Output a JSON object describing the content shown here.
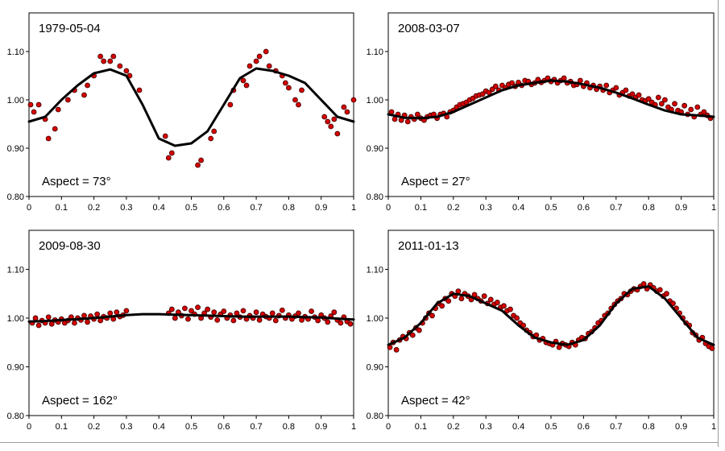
{
  "chart_data": [
    {
      "type": "scatter",
      "title": "1979-05-04",
      "annotation": "Aspect = 73°",
      "xlim": [
        0,
        1
      ],
      "ylim": [
        0.8,
        1.18
      ],
      "x_ticks": [
        "0",
        "0.1",
        "0.2",
        "0.3",
        "0.4",
        "0.5",
        "0.6",
        "0.7",
        "0.8",
        "0.9",
        "1"
      ],
      "y_ticks": [
        "0.80",
        "0.90",
        "1.00",
        "1.10"
      ],
      "fit_curve": {
        "x": [
          0,
          0.05,
          0.1,
          0.15,
          0.2,
          0.25,
          0.3,
          0.35,
          0.4,
          0.45,
          0.5,
          0.55,
          0.6,
          0.65,
          0.7,
          0.75,
          0.8,
          0.85,
          0.9,
          0.95,
          1.0
        ],
        "y": [
          0.955,
          0.965,
          1.0,
          1.03,
          1.055,
          1.063,
          1.05,
          0.99,
          0.92,
          0.905,
          0.91,
          0.935,
          0.99,
          1.045,
          1.065,
          1.06,
          1.05,
          1.035,
          1.0,
          0.965,
          0.955
        ]
      },
      "points": {
        "x": [
          0.005,
          0.015,
          0.03,
          0.05,
          0.06,
          0.08,
          0.09,
          0.12,
          0.14,
          0.17,
          0.18,
          0.2,
          0.22,
          0.23,
          0.25,
          0.26,
          0.28,
          0.3,
          0.31,
          0.34,
          0.42,
          0.43,
          0.44,
          0.52,
          0.53,
          0.56,
          0.57,
          0.62,
          0.63,
          0.66,
          0.67,
          0.68,
          0.7,
          0.71,
          0.73,
          0.74,
          0.76,
          0.78,
          0.79,
          0.8,
          0.82,
          0.83,
          0.84,
          0.91,
          0.92,
          0.93,
          0.94,
          0.95,
          0.97,
          0.98,
          1.0
        ],
        "y": [
          0.99,
          0.975,
          0.99,
          0.96,
          0.92,
          0.94,
          0.98,
          1.0,
          1.02,
          1.01,
          1.03,
          1.05,
          1.09,
          1.08,
          1.08,
          1.09,
          1.07,
          1.06,
          1.05,
          1.02,
          0.925,
          0.88,
          0.89,
          0.865,
          0.875,
          0.92,
          0.935,
          0.99,
          1.02,
          1.04,
          1.03,
          1.07,
          1.08,
          1.09,
          1.1,
          1.07,
          1.06,
          1.05,
          1.035,
          1.025,
          1.0,
          0.99,
          1.02,
          0.965,
          0.955,
          0.945,
          0.96,
          0.93,
          0.985,
          0.975,
          1.0
        ]
      }
    },
    {
      "type": "scatter",
      "title": "2008-03-07",
      "annotation": "Aspect = 27°",
      "xlim": [
        0,
        1
      ],
      "ylim": [
        0.8,
        1.18
      ],
      "x_ticks": [
        "0",
        "0.1",
        "0.2",
        "0.3",
        "0.4",
        "0.5",
        "0.6",
        "0.7",
        "0.8",
        "0.9",
        "1"
      ],
      "y_ticks": [
        "0.80",
        "0.90",
        "1.00",
        "1.10"
      ],
      "fit_curve": {
        "x": [
          0,
          0.05,
          0.1,
          0.15,
          0.2,
          0.25,
          0.3,
          0.35,
          0.4,
          0.45,
          0.5,
          0.55,
          0.6,
          0.65,
          0.7,
          0.75,
          0.8,
          0.85,
          0.9,
          0.95,
          1.0
        ],
        "y": [
          0.97,
          0.963,
          0.962,
          0.965,
          0.975,
          0.99,
          1.005,
          1.02,
          1.03,
          1.035,
          1.04,
          1.038,
          1.032,
          1.025,
          1.015,
          1.003,
          0.99,
          0.978,
          0.97,
          0.968,
          0.965
        ]
      },
      "points": {
        "x": [
          0.01,
          0.02,
          0.03,
          0.04,
          0.05,
          0.06,
          0.07,
          0.08,
          0.09,
          0.1,
          0.11,
          0.12,
          0.13,
          0.14,
          0.15,
          0.16,
          0.17,
          0.18,
          0.19,
          0.2,
          0.21,
          0.22,
          0.23,
          0.24,
          0.25,
          0.26,
          0.27,
          0.28,
          0.29,
          0.3,
          0.31,
          0.32,
          0.33,
          0.34,
          0.35,
          0.36,
          0.37,
          0.38,
          0.39,
          0.4,
          0.41,
          0.42,
          0.43,
          0.44,
          0.45,
          0.46,
          0.47,
          0.48,
          0.49,
          0.5,
          0.51,
          0.52,
          0.53,
          0.54,
          0.55,
          0.56,
          0.57,
          0.58,
          0.59,
          0.6,
          0.61,
          0.62,
          0.63,
          0.64,
          0.65,
          0.66,
          0.67,
          0.68,
          0.69,
          0.7,
          0.71,
          0.72,
          0.73,
          0.74,
          0.75,
          0.76,
          0.77,
          0.78,
          0.79,
          0.8,
          0.81,
          0.82,
          0.83,
          0.84,
          0.85,
          0.86,
          0.87,
          0.88,
          0.89,
          0.9,
          0.91,
          0.92,
          0.93,
          0.94,
          0.95,
          0.96,
          0.97,
          0.98,
          0.99
        ],
        "y": [
          0.975,
          0.96,
          0.97,
          0.958,
          0.968,
          0.955,
          0.965,
          0.96,
          0.97,
          0.962,
          0.958,
          0.965,
          0.968,
          0.97,
          0.962,
          0.97,
          0.972,
          0.965,
          0.975,
          0.978,
          0.985,
          0.99,
          0.992,
          0.995,
          1.0,
          1.003,
          1.008,
          1.01,
          1.012,
          1.018,
          1.015,
          1.022,
          1.028,
          1.02,
          1.03,
          1.025,
          1.032,
          1.035,
          1.028,
          1.036,
          1.03,
          1.04,
          1.038,
          1.032,
          1.035,
          1.042,
          1.036,
          1.04,
          1.045,
          1.038,
          1.042,
          1.035,
          1.04,
          1.045,
          1.035,
          1.038,
          1.03,
          1.032,
          1.04,
          1.028,
          1.035,
          1.025,
          1.03,
          1.022,
          1.028,
          1.02,
          1.03,
          1.015,
          1.02,
          1.025,
          1.01,
          1.015,
          1.02,
          1.008,
          1.012,
          1.005,
          1.01,
          1.0,
          0.998,
          1.002,
          0.995,
          0.99,
          1.005,
          0.992,
          1.0,
          0.985,
          0.98,
          0.992,
          0.978,
          0.975,
          0.988,
          0.97,
          0.98,
          0.965,
          0.985,
          0.97,
          0.975,
          0.968,
          0.962
        ]
      }
    },
    {
      "type": "scatter",
      "title": "2009-08-30",
      "annotation": "Aspect = 162°",
      "xlim": [
        0,
        1
      ],
      "ylim": [
        0.8,
        1.18
      ],
      "x_ticks": [
        "0",
        "0.1",
        "0.2",
        "0.3",
        "0.4",
        "0.5",
        "0.6",
        "0.7",
        "0.8",
        "0.9",
        "1"
      ],
      "y_ticks": [
        "0.80",
        "0.90",
        "1.00",
        "1.10"
      ],
      "fit_curve": {
        "x": [
          0,
          0.05,
          0.1,
          0.15,
          0.2,
          0.25,
          0.3,
          0.35,
          0.4,
          0.45,
          0.5,
          0.55,
          0.6,
          0.65,
          0.7,
          0.75,
          0.8,
          0.85,
          0.9,
          0.95,
          1.0
        ],
        "y": [
          0.993,
          0.994,
          0.996,
          0.998,
          1.0,
          1.003,
          1.006,
          1.008,
          1.008,
          1.007,
          1.006,
          1.005,
          1.004,
          1.003,
          1.003,
          1.003,
          1.003,
          1.002,
          1.001,
          0.999,
          0.997
        ]
      },
      "points": {
        "x": [
          0.01,
          0.02,
          0.03,
          0.04,
          0.05,
          0.06,
          0.07,
          0.08,
          0.09,
          0.1,
          0.11,
          0.12,
          0.13,
          0.14,
          0.15,
          0.16,
          0.17,
          0.18,
          0.19,
          0.2,
          0.21,
          0.22,
          0.23,
          0.24,
          0.25,
          0.26,
          0.27,
          0.28,
          0.29,
          0.3,
          0.43,
          0.44,
          0.45,
          0.46,
          0.47,
          0.48,
          0.49,
          0.5,
          0.51,
          0.52,
          0.53,
          0.54,
          0.55,
          0.56,
          0.57,
          0.58,
          0.59,
          0.6,
          0.61,
          0.62,
          0.63,
          0.64,
          0.65,
          0.66,
          0.67,
          0.68,
          0.69,
          0.7,
          0.71,
          0.72,
          0.73,
          0.74,
          0.75,
          0.76,
          0.77,
          0.78,
          0.79,
          0.8,
          0.81,
          0.82,
          0.83,
          0.84,
          0.85,
          0.86,
          0.87,
          0.88,
          0.89,
          0.9,
          0.91,
          0.92,
          0.93,
          0.94,
          0.95,
          0.96,
          0.97,
          0.98,
          0.99
        ],
        "y": [
          0.99,
          1.0,
          0.985,
          0.995,
          0.99,
          1.002,
          0.988,
          0.996,
          0.992,
          0.998,
          0.99,
          0.995,
          1.002,
          0.99,
          1.0,
          0.996,
          1.005,
          0.992,
          1.004,
          0.998,
          1.008,
          0.995,
          1.003,
          1.0,
          1.01,
          0.998,
          1.012,
          1.003,
          1.006,
          1.015,
          1.01,
          1.018,
          1.0,
          1.012,
          1.005,
          1.02,
          0.998,
          1.015,
          1.008,
          1.022,
          1.0,
          1.01,
          1.018,
          1.002,
          1.012,
          0.996,
          1.008,
          1.014,
          1.0,
          1.006,
          0.995,
          1.01,
          1.002,
          1.015,
          0.998,
          1.005,
          1.0,
          1.012,
          0.996,
          1.008,
          1.003,
          1.0,
          1.01,
          0.995,
          1.005,
          1.016,
          1.0,
          1.006,
          0.998,
          1.004,
          1.01,
          0.996,
          1.003,
          0.998,
          1.014,
          1.002,
          0.995,
          1.006,
          1.0,
          0.992,
          1.004,
          1.012,
          0.996,
          0.99,
          1.002,
          0.993,
          0.988
        ]
      }
    },
    {
      "type": "scatter",
      "title": "2011-01-13",
      "annotation": "Aspect = 42°",
      "xlim": [
        0,
        1
      ],
      "ylim": [
        0.8,
        1.18
      ],
      "x_ticks": [
        "0",
        "0.1",
        "0.2",
        "0.3",
        "0.4",
        "0.5",
        "0.6",
        "0.7",
        "0.8",
        "0.9",
        "1"
      ],
      "y_ticks": [
        "0.80",
        "0.90",
        "1.00",
        "1.10"
      ],
      "fit_curve": {
        "x": [
          0,
          0.05,
          0.1,
          0.15,
          0.2,
          0.25,
          0.3,
          0.35,
          0.4,
          0.45,
          0.5,
          0.55,
          0.6,
          0.65,
          0.7,
          0.75,
          0.8,
          0.85,
          0.9,
          0.95,
          1.0
        ],
        "y": [
          0.945,
          0.96,
          0.99,
          1.03,
          1.05,
          1.045,
          1.03,
          1.015,
          0.985,
          0.96,
          0.95,
          0.945,
          0.955,
          0.985,
          1.03,
          1.06,
          1.065,
          1.04,
          1.0,
          0.96,
          0.945
        ]
      },
      "points": {
        "x": [
          0.005,
          0.015,
          0.025,
          0.035,
          0.045,
          0.055,
          0.065,
          0.075,
          0.085,
          0.095,
          0.105,
          0.115,
          0.125,
          0.135,
          0.145,
          0.155,
          0.165,
          0.175,
          0.185,
          0.195,
          0.205,
          0.215,
          0.225,
          0.235,
          0.245,
          0.255,
          0.265,
          0.275,
          0.285,
          0.295,
          0.305,
          0.315,
          0.325,
          0.335,
          0.345,
          0.355,
          0.365,
          0.375,
          0.385,
          0.395,
          0.405,
          0.415,
          0.425,
          0.435,
          0.445,
          0.455,
          0.465,
          0.475,
          0.485,
          0.495,
          0.505,
          0.515,
          0.525,
          0.535,
          0.545,
          0.555,
          0.565,
          0.575,
          0.585,
          0.595,
          0.605,
          0.615,
          0.625,
          0.635,
          0.645,
          0.655,
          0.665,
          0.675,
          0.685,
          0.695,
          0.705,
          0.715,
          0.725,
          0.735,
          0.745,
          0.755,
          0.765,
          0.775,
          0.785,
          0.795,
          0.805,
          0.815,
          0.825,
          0.835,
          0.845,
          0.855,
          0.865,
          0.875,
          0.885,
          0.895,
          0.905,
          0.915,
          0.925,
          0.935,
          0.945,
          0.955,
          0.965,
          0.975,
          0.985,
          0.995
        ],
        "y": [
          0.94,
          0.95,
          0.935,
          0.955,
          0.962,
          0.958,
          0.97,
          0.965,
          0.98,
          0.975,
          0.99,
          1.0,
          1.01,
          1.005,
          1.02,
          1.03,
          1.025,
          1.04,
          1.035,
          1.05,
          1.045,
          1.055,
          1.04,
          1.05,
          1.045,
          1.038,
          1.048,
          1.04,
          1.035,
          1.045,
          1.03,
          1.038,
          1.028,
          1.032,
          1.022,
          1.025,
          1.015,
          1.018,
          1.005,
          1.0,
          0.99,
          0.985,
          0.975,
          0.97,
          0.962,
          0.965,
          0.955,
          0.958,
          0.95,
          0.948,
          0.945,
          0.952,
          0.94,
          0.948,
          0.945,
          0.942,
          0.95,
          0.945,
          0.955,
          0.96,
          0.958,
          0.968,
          0.972,
          0.98,
          0.99,
          0.995,
          1.005,
          1.01,
          1.02,
          1.028,
          1.035,
          1.04,
          1.05,
          1.048,
          1.055,
          1.06,
          1.058,
          1.065,
          1.07,
          1.06,
          1.068,
          1.062,
          1.055,
          1.058,
          1.045,
          1.05,
          1.035,
          1.03,
          1.02,
          1.01,
          1.0,
          0.99,
          0.985,
          0.97,
          0.965,
          0.955,
          0.96,
          0.948,
          0.942,
          0.938
        ]
      }
    }
  ]
}
